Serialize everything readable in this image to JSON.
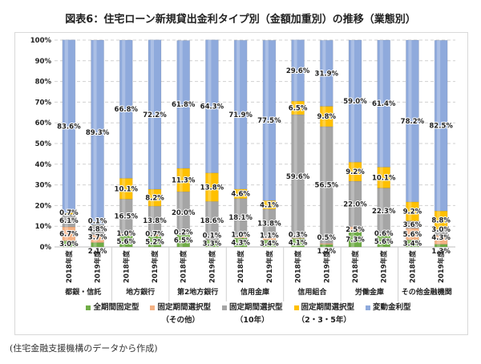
{
  "chart_data": {
    "type": "bar",
    "stacked": true,
    "title": "図表6：住宅ローン新規貸出金利タイプ別（金額加重別）の推移（業態別）",
    "groups": [
      "都銀・信託",
      "地方銀行",
      "第2地方銀行",
      "信用金庫",
      "信用組合",
      "労働金庫",
      "その他金融機関"
    ],
    "years": [
      "2018年度",
      "2019年度"
    ],
    "ylim": [
      0,
      100
    ],
    "yticks": [
      "0%",
      "10%",
      "20%",
      "30%",
      "40%",
      "50%",
      "60%",
      "70%",
      "80%",
      "90%",
      "100%"
    ],
    "grid": true,
    "legend_position": "bottom",
    "series": [
      {
        "name": "全期間固定型",
        "name2": "",
        "color": "#70ad47",
        "values": [
          3.0,
          2.1,
          5.6,
          5.2,
          6.5,
          3.3,
          4.3,
          3.4,
          4.1,
          1.2,
          7.3,
          5.6,
          3.4,
          1.3
        ]
      },
      {
        "name": "固定期間選択型",
        "name2": "（その他）",
        "color": "#f4b183",
        "values": [
          6.7,
          3.7,
          1.0,
          0.7,
          0.2,
          0.1,
          1.0,
          1.1,
          0.3,
          0.5,
          2.5,
          0.6,
          5.6,
          4.3
        ]
      },
      {
        "name": "固定期間選択型",
        "name2": "（10年）",
        "color": "#a5a5a5",
        "values": [
          6.1,
          4.8,
          16.5,
          13.8,
          20.0,
          18.6,
          18.1,
          13.8,
          59.6,
          56.5,
          22.0,
          22.3,
          3.6,
          3.0
        ]
      },
      {
        "name": "固定期間選択型",
        "name2": "（2・3・5年）",
        "color": "#ffc000",
        "values": [
          0.7,
          0.1,
          10.1,
          8.2,
          11.3,
          13.8,
          4.6,
          4.1,
          6.5,
          9.8,
          9.2,
          10.1,
          9.2,
          8.8
        ]
      },
      {
        "name": "変動金利型",
        "name2": "",
        "color": "#8faadc",
        "values": [
          83.6,
          89.3,
          66.8,
          72.2,
          61.8,
          64.3,
          71.9,
          77.5,
          29.6,
          31.9,
          59.0,
          61.4,
          78.2,
          82.5
        ]
      }
    ]
  },
  "footnote": "(住宅金融支援機構のデータから作成)"
}
